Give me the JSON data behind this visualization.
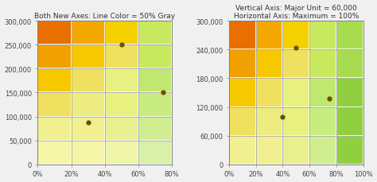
{
  "chart1": {
    "title": "Both New Axes: Line Color = 50% Gray",
    "x_ticks": [
      0,
      0.2,
      0.4,
      0.6,
      0.8
    ],
    "x_labels": [
      "0%",
      "20%",
      "40%",
      "60%",
      "80%"
    ],
    "x_max": 0.8,
    "y_ticks": [
      0,
      50000,
      100000,
      150000,
      200000,
      250000,
      300000
    ],
    "y_labels": [
      "0",
      "50,000",
      "100,000",
      "150,000",
      "200,000",
      "250,000",
      "300,000"
    ],
    "y_max": 300000,
    "n_cols": 4,
    "n_rows": 6,
    "grid_color": "#808080",
    "points": [
      [
        0.3,
        87000
      ],
      [
        0.5,
        250000
      ],
      [
        0.75,
        150000
      ]
    ],
    "point_color": "#6B5000"
  },
  "chart2": {
    "title1": "Vertical Axis: Major Unit = 60,000",
    "title2": "Horizontal Axis: Maximum = 100%",
    "x_ticks": [
      0,
      0.2,
      0.4,
      0.6,
      0.8,
      1.0
    ],
    "x_labels": [
      "0%",
      "20%",
      "40%",
      "60%",
      "80%",
      "100%"
    ],
    "x_max": 1.0,
    "y_ticks": [
      0,
      60000,
      120000,
      180000,
      240000,
      300000
    ],
    "y_labels": [
      "0",
      "60,000",
      "120,000",
      "180,000",
      "240,000",
      "300,000"
    ],
    "y_max": 300000,
    "n_cols": 5,
    "n_rows": 5,
    "grid_color": "#808080",
    "points": [
      [
        0.4,
        100000
      ],
      [
        0.5,
        243000
      ],
      [
        0.75,
        138000
      ]
    ],
    "point_color": "#6B5000"
  },
  "chart1_colors": [
    [
      "#E87000",
      "#F5A800",
      "#F5D000",
      "#C8E860"
    ],
    [
      "#F0A000",
      "#F5C800",
      "#F0E060",
      "#C8E860"
    ],
    [
      "#F5C800",
      "#F0E060",
      "#E8F080",
      "#C0E870"
    ],
    [
      "#F0E060",
      "#ECEC80",
      "#E8F080",
      "#C8EC80"
    ],
    [
      "#F0F090",
      "#F0F090",
      "#E8F090",
      "#D0EE90"
    ],
    [
      "#F5F5A8",
      "#F5F5A8",
      "#EEF5A8",
      "#D8F0A8"
    ]
  ],
  "chart2_colors": [
    [
      "#E87000",
      "#F5A800",
      "#F5D000",
      "#C8E860",
      "#A8DC50"
    ],
    [
      "#F0A000",
      "#F5C800",
      "#F0E060",
      "#C8E860",
      "#A8DC50"
    ],
    [
      "#F5C800",
      "#F0E060",
      "#E8F080",
      "#C0E870",
      "#90D040"
    ],
    [
      "#F0E060",
      "#ECEC80",
      "#E8F080",
      "#C8EC80",
      "#90D040"
    ],
    [
      "#F0F090",
      "#F0F090",
      "#E8F090",
      "#D0EE90",
      "#90D040"
    ]
  ],
  "bg_color": "#f0f0f0"
}
